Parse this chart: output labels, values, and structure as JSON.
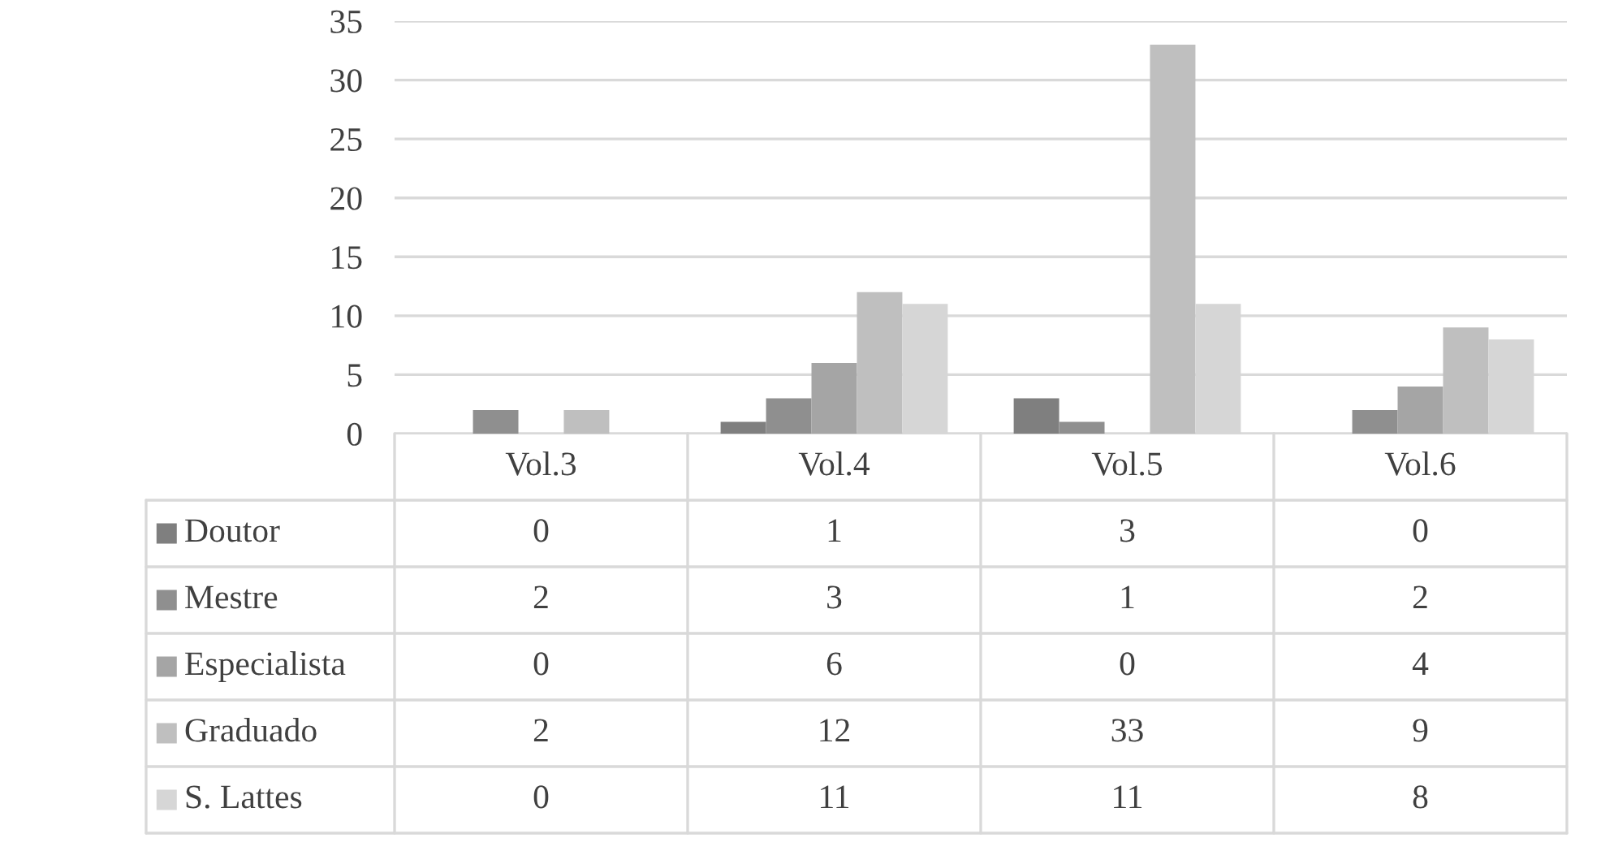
{
  "chart_data": {
    "type": "bar",
    "categories": [
      "Vol.3",
      "Vol.4",
      "Vol.5",
      "Vol.6"
    ],
    "series": [
      {
        "name": "Doutor",
        "color": "#7f7f7f",
        "values": [
          0,
          1,
          3,
          0
        ]
      },
      {
        "name": "Mestre",
        "color": "#8f8f8f",
        "values": [
          2,
          3,
          1,
          2
        ]
      },
      {
        "name": "Especialista",
        "color": "#a5a5a5",
        "values": [
          0,
          6,
          0,
          4
        ]
      },
      {
        "name": "Graduado",
        "color": "#bfbfbf",
        "values": [
          2,
          12,
          33,
          9
        ]
      },
      {
        "name": "S. Lattes",
        "color": "#d6d6d6",
        "values": [
          0,
          11,
          11,
          8
        ]
      }
    ],
    "ylim": [
      0,
      35
    ],
    "yticks": [
      0,
      5,
      10,
      15,
      20,
      25,
      30,
      35
    ],
    "grid": "y",
    "legend": "bottom",
    "data_labels": true
  }
}
